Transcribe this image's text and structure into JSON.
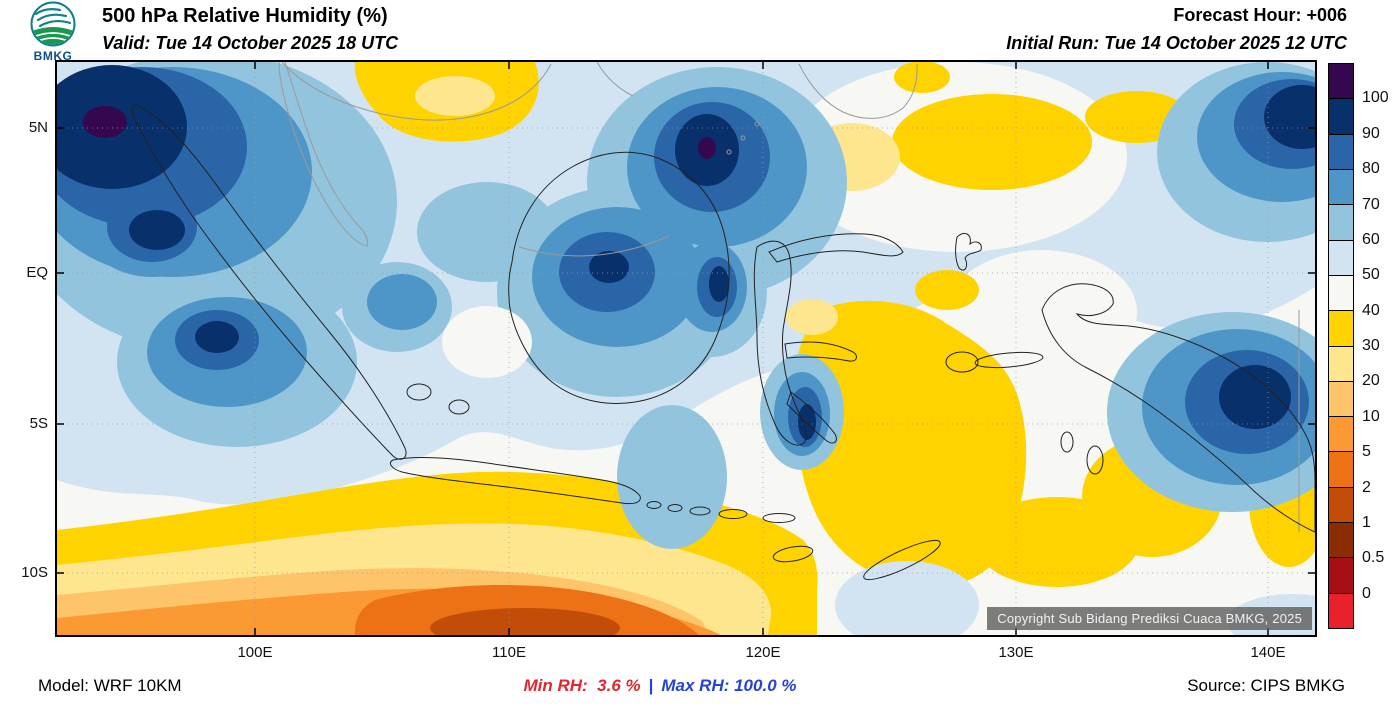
{
  "header": {
    "logo_label": "BMKG",
    "title": "500 hPa Relative Humidity (%)",
    "valid_line": "Valid: Tue 14 October 2025 18 UTC",
    "forecast_hour": "Forecast Hour: +006",
    "initial_run": "Initial Run: Tue 14 October 2025 12 UTC"
  },
  "map": {
    "lat_labels": [
      "5N",
      "EQ",
      "5S",
      "10S"
    ],
    "lon_labels": [
      "100E",
      "110E",
      "120E",
      "130E",
      "140E"
    ],
    "copyright": "Copyright Sub Bidang Prediksi Cuaca BMKG, 2025"
  },
  "colorbar": {
    "tick_labels": [
      "100",
      "90",
      "80",
      "70",
      "60",
      "50",
      "40",
      "30",
      "20",
      "10",
      "5",
      "2",
      "1",
      "0.5",
      "0"
    ],
    "swatch_colors": [
      "#35074f",
      "#08306b",
      "#2a65a8",
      "#4e96c8",
      "#93c4de",
      "#d2e4f1",
      "#f7f7f3",
      "#ffd300",
      "#fee68f",
      "#fdc46a",
      "#fb9a32",
      "#ed7115",
      "#c14d08",
      "#8c2c05",
      "#a50f15",
      "#e8212a"
    ]
  },
  "footer": {
    "model": "Model: WRF 10KM",
    "min_rh": "Min RH:  3.6 %",
    "separator": "|",
    "max_rh": "Max RH: 100.0 %",
    "source": "Source: CIPS BMKG"
  },
  "chart_data": {
    "type": "heatmap",
    "title": "500 hPa Relative Humidity (%)",
    "units": "%",
    "valid_time": "Tue 14 October 2025 18 UTC",
    "initial_run": "Tue 14 October 2025 12 UTC",
    "forecast_hour": "+006",
    "model": "WRF 10KM",
    "source": "CIPS BMKG",
    "min_value": 3.6,
    "max_value": 100.0,
    "colorbar_levels": [
      100,
      90,
      80,
      70,
      60,
      50,
      40,
      30,
      20,
      10,
      5,
      2,
      1,
      0.5,
      0
    ],
    "x_ticks": [
      "100E",
      "110E",
      "120E",
      "130E",
      "140E"
    ],
    "y_ticks": [
      "5N",
      "EQ",
      "5S",
      "10S"
    ],
    "grid": true,
    "legend_position": "right"
  }
}
